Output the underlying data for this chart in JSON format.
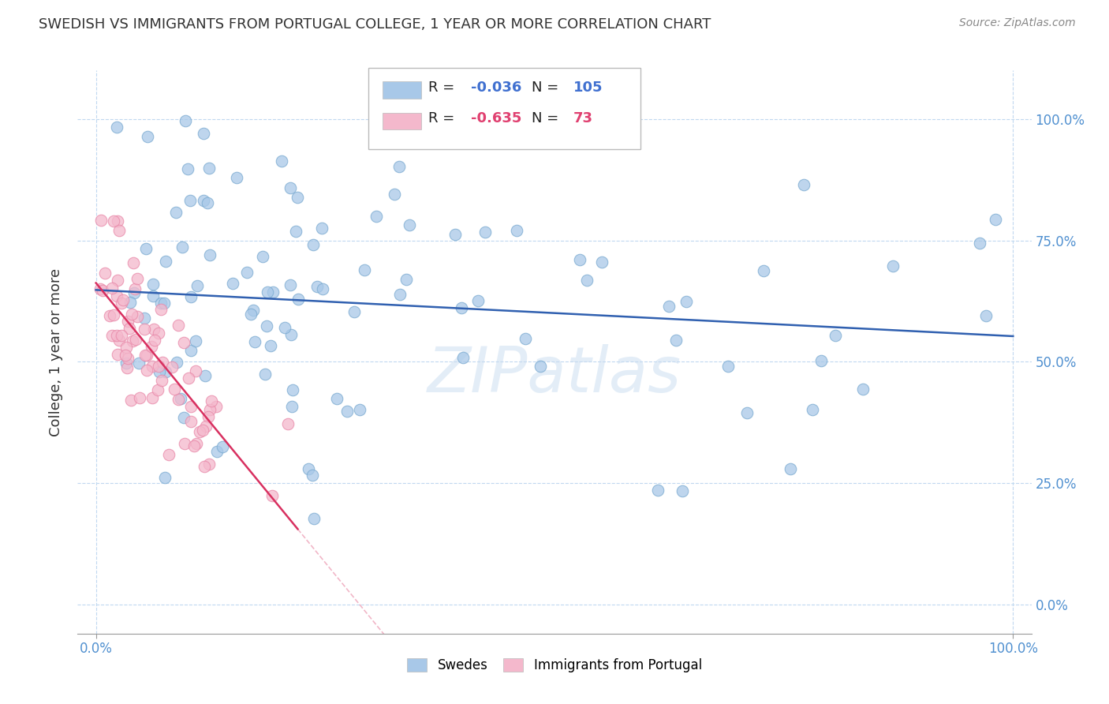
{
  "title": "SWEDISH VS IMMIGRANTS FROM PORTUGAL COLLEGE, 1 YEAR OR MORE CORRELATION CHART",
  "source": "Source: ZipAtlas.com",
  "ylabel": "College, 1 year or more",
  "legend_label1": "Swedes",
  "legend_label2": "Immigrants from Portugal",
  "legend_R1": "-0.036",
  "legend_N1": "105",
  "legend_R2": "-0.635",
  "legend_N2": "73",
  "color_blue": "#A8C8E8",
  "color_pink": "#F4B8CC",
  "edge_blue": "#7AAAD0",
  "edge_pink": "#E888A8",
  "line_blue": "#3060B0",
  "line_pink": "#D83060",
  "watermark": "ZIPatlas",
  "seed": 42
}
